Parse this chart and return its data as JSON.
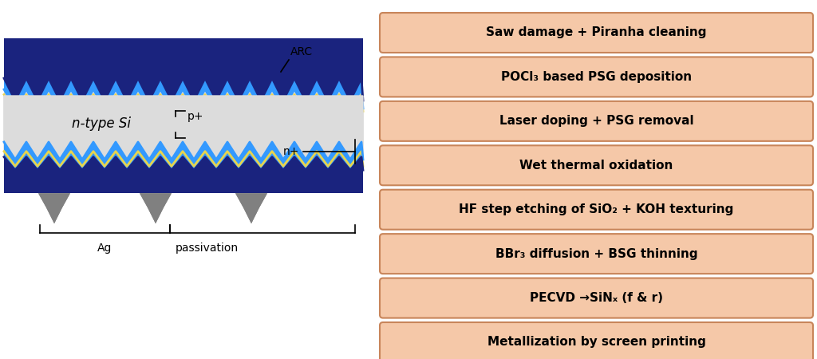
{
  "background_color": "#ffffff",
  "left_panel": {
    "si_color": "#dcdcdc",
    "blue_light": "#3399ff",
    "blue_dark": "#1a237e",
    "yellow": "#e8d44d",
    "red": "#cc2200",
    "contact_color": "#808080",
    "si_label": "n-type Si",
    "arc_label": "ARC",
    "p_label": "p+",
    "n_label": "n+",
    "ag_label": "Ag",
    "pass_label": "passivation"
  },
  "right_panel": {
    "box_fill": "#f5c8a8",
    "box_edge": "#c8855a",
    "text_color": "#000000",
    "steps": [
      "Saw damage + Piranha cleaning",
      "POCl₃ based PSG deposition",
      "Laser doping + PSG removal",
      "Wet thermal oxidation",
      "HF step etching of SiO₂ + KOH texturing",
      "BBr₃ diffusion + BSG thinning",
      "PECVD →SiNₓ (f & r)",
      "Metallization by screen printing"
    ]
  }
}
